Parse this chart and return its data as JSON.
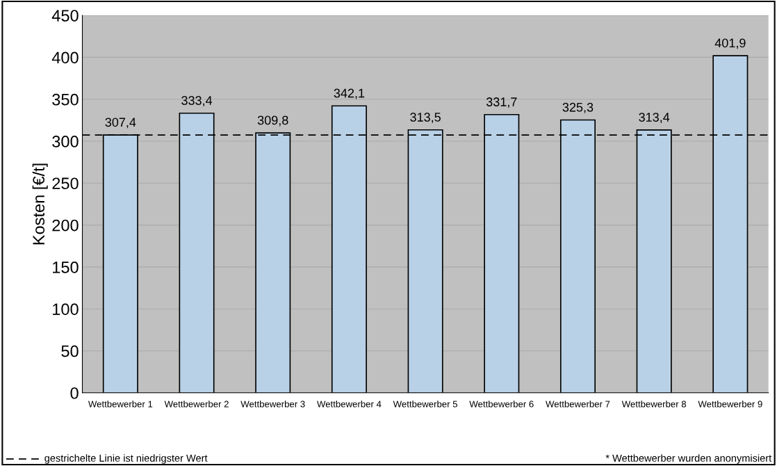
{
  "chart_data": {
    "type": "bar",
    "ylabel": "Kosten [€/t]",
    "categories": [
      "Wettbewerber 1",
      "Wettbewerber 2",
      "Wettbewerber 3",
      "Wettbewerber 4",
      "Wettbewerber 5",
      "Wettbewerber 6",
      "Wettbewerber 7",
      "Wettbewerber 8",
      "Wettbewerber 9"
    ],
    "values": [
      307.4,
      333.4,
      309.8,
      342.1,
      313.5,
      331.7,
      325.3,
      313.4,
      401.9
    ],
    "value_labels": [
      "307,4",
      "333,4",
      "309,8",
      "342,1",
      "313,5",
      "331,7",
      "325,3",
      "313,4",
      "401,9"
    ],
    "color": "#b9d1e7",
    "ylim": [
      0,
      450
    ],
    "yticks": [
      0,
      50,
      100,
      150,
      200,
      250,
      300,
      350,
      400,
      450
    ],
    "grid": "y",
    "ref_lines": [
      {
        "axis": "y",
        "value": 307.4,
        "label": "gestrichelte Linie ist niedrigster Wert",
        "color": "#000000",
        "line_style": "dashed"
      }
    ],
    "annotations": [
      "* Wettbewerber wurden anonymisiert"
    ]
  }
}
